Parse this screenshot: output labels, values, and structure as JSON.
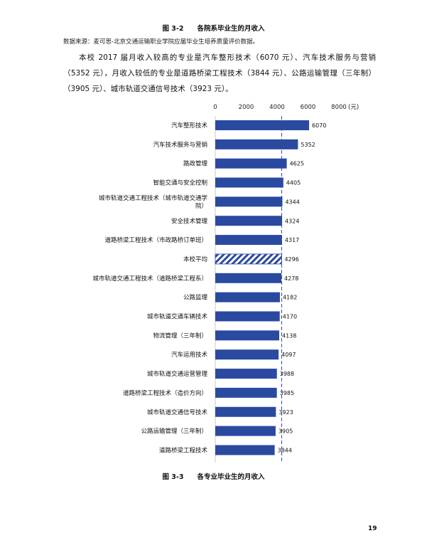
{
  "figure_top_caption": "图 3-2　　各院系毕业生的月收入",
  "source_note": "数据来源：麦可思-北京交通运输职业学院应届毕业生培养质量评价数据。",
  "paragraph": "本校 2017 届月收入较高的专业是汽车整形技术（6070 元）、汽车技术服务与营销（5352 元），月收入较低的专业是道路桥梁工程技术（3844 元）、公路运输管理（三年制）（3905 元）、城市轨道交通信号技术（3923 元）。",
  "figure_bottom_caption": "图 3-3　　各专业毕业生的月收入",
  "page_number": "19",
  "colors": {
    "bar": "#2a4aa0",
    "average_hatch": "#2a4aa0",
    "reference_line": "#2a4aa0"
  },
  "chart_data": {
    "type": "bar",
    "orientation": "horizontal",
    "x_unit": "(元)",
    "xlim": [
      0,
      8000
    ],
    "x_ticks": [
      "0",
      "2000",
      "4000",
      "6000",
      "8000"
    ],
    "reference_line_value": 4296,
    "categories": [
      [
        "汽车整形技术"
      ],
      [
        "汽车技术服务与营销"
      ],
      [
        "路政管理"
      ],
      [
        "智能交通与安全控制"
      ],
      [
        "城市轨道交通工程技术（城市轨道交通学",
        "院）"
      ],
      [
        "安全技术管理"
      ],
      [
        "道路桥梁工程技术（市政路桥订单班）"
      ],
      [
        "本校平均"
      ],
      [
        "城市轨道交通工程技术（道路桥梁工程系）"
      ],
      [
        "公路监理"
      ],
      [
        "城市轨道交通车辆技术"
      ],
      [
        "物流管理（三年制）"
      ],
      [
        "汽车运用技术"
      ],
      [
        "城市轨道交通运营管理"
      ],
      [
        "道路桥梁工程技术（造价方向）"
      ],
      [
        "城市轨道交通信号技术"
      ],
      [
        "公路运输管理（三年制）"
      ],
      [
        "道路桥梁工程技术"
      ]
    ],
    "values": [
      6070,
      5352,
      4625,
      4405,
      4344,
      4324,
      4317,
      4296,
      4278,
      4182,
      4170,
      4138,
      4097,
      3988,
      3985,
      3923,
      3905,
      3844
    ],
    "highlight_category": "本校平均"
  }
}
